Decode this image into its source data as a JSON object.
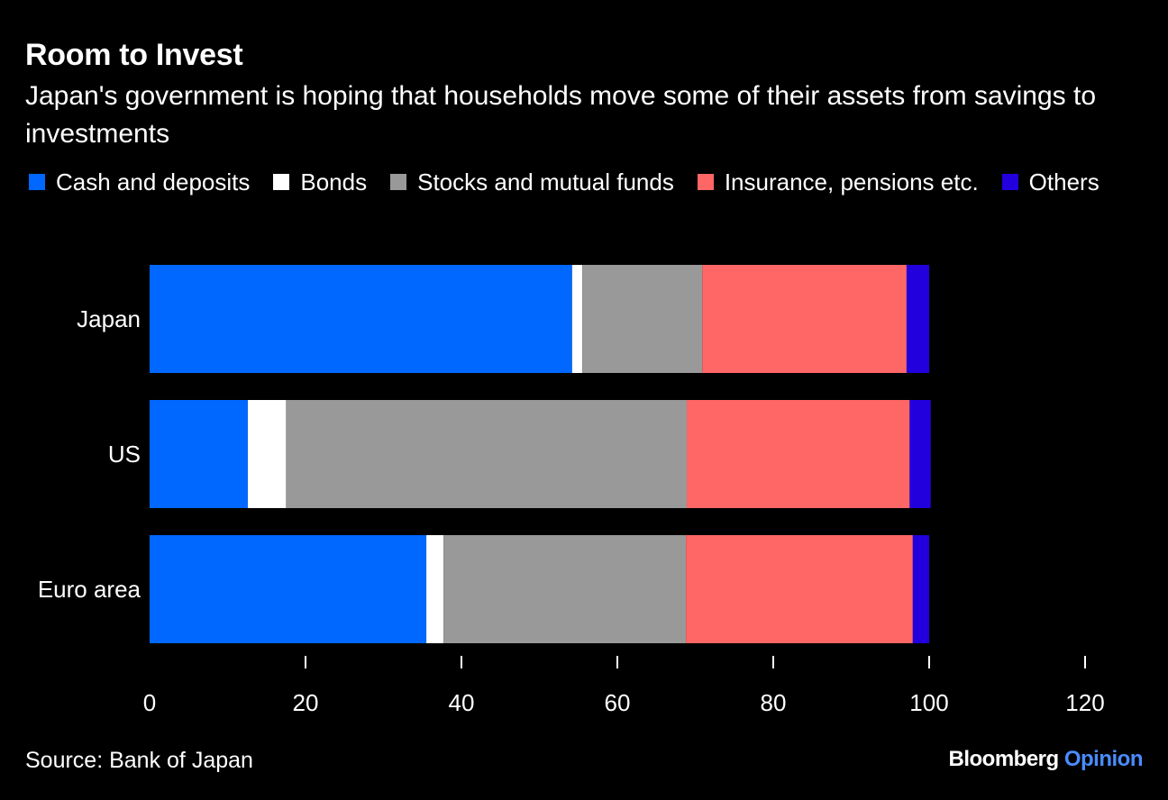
{
  "chart_data": {
    "type": "bar",
    "orientation": "horizontal",
    "stacked": true,
    "title": "Room to Invest",
    "subtitle": "Japan's government is hoping that households move some of their assets from savings to investments",
    "categories": [
      "Japan",
      "US",
      "Euro area"
    ],
    "series": [
      {
        "name": "Cash and deposits",
        "color": "#0068ff",
        "values": [
          54.2,
          12.6,
          35.5
        ]
      },
      {
        "name": "Bonds",
        "color": "#ffffff",
        "values": [
          1.3,
          4.9,
          2.2
        ]
      },
      {
        "name": "Stocks and mutual funds",
        "color": "#999999",
        "values": [
          15.4,
          51.4,
          31.1
        ]
      },
      {
        "name": "Insurance, pensions etc.",
        "color": "#ff6666",
        "values": [
          26.2,
          28.6,
          29.1
        ]
      },
      {
        "name": "Others",
        "color": "#2200dd",
        "values": [
          2.9,
          2.7,
          2.1
        ]
      }
    ],
    "xlim": [
      0,
      120
    ],
    "xticks": [
      0,
      20,
      40,
      60,
      80,
      100,
      120
    ],
    "xlabel": "",
    "ylabel": "",
    "grid": false,
    "legend_position": "top"
  },
  "source": "Source: Bank of Japan",
  "logo": {
    "brand": "Bloomberg",
    "product": "Opinion"
  }
}
